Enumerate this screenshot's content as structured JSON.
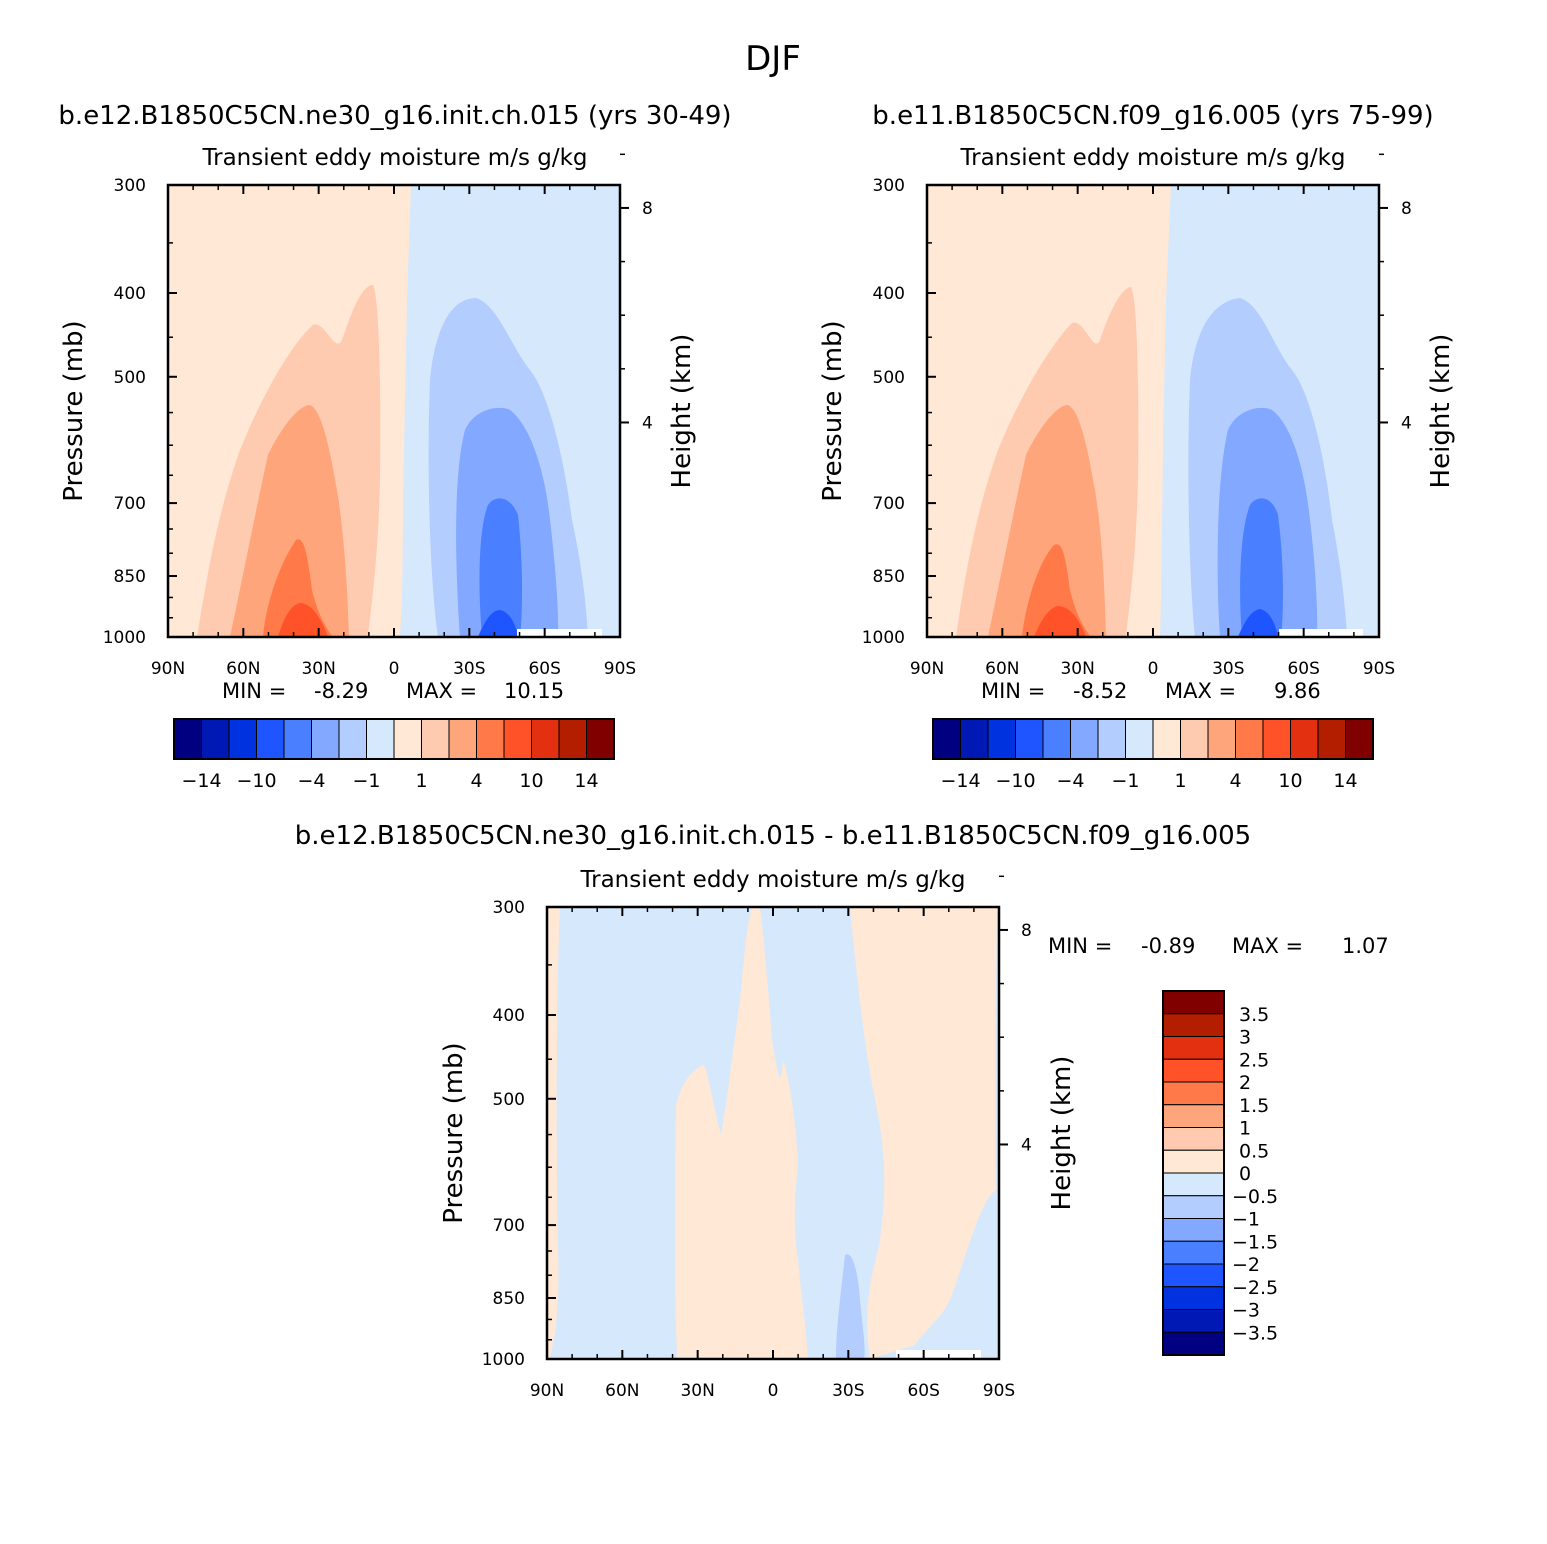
{
  "page_title": "DJF",
  "colors": {
    "scale": [
      "#000080",
      "#0018b4",
      "#0032e0",
      "#1e55ff",
      "#4a80ff",
      "#82a8ff",
      "#b4cdff",
      "#d6e8fc",
      "#ffe8d6",
      "#ffcbb0",
      "#ffa57c",
      "#ff7a48",
      "#ff5228",
      "#e23010",
      "#b41e00",
      "#800000"
    ],
    "white": "#ffffff"
  },
  "chart_data": [
    {
      "type": "heatmap",
      "plot_type": "filled contour (pressure-latitude)",
      "case_title": "b.e12.B1850C5CN.ne30_g16.init.ch.015 (yrs 30-49)",
      "variable_title": "Transient eddy moisture m/s g/kg",
      "x_ticks": [
        "90N",
        "60N",
        "30N",
        "0",
        "30S",
        "60S",
        "90S"
      ],
      "x_range": [
        90,
        -90
      ],
      "y_label": "Pressure (mb)",
      "y_ticks": [
        "300",
        "400",
        "500",
        "700",
        "850",
        "1000"
      ],
      "y_range_mb": [
        1000,
        300
      ],
      "y_scale": "log",
      "y2_label": "Height (km)",
      "y2_ticks": [
        "8",
        "4"
      ],
      "min_label": "MIN =",
      "min_value": "-8.29",
      "max_label": "MAX =",
      "max_value": "10.15",
      "colorbar_labels": [
        "-14",
        "-10",
        "-4",
        "-1",
        "1",
        "4",
        "10",
        "14"
      ],
      "colorbar_orientation": "horizontal",
      "min_max": [
        -8.29,
        10.15
      ]
    },
    {
      "type": "heatmap",
      "plot_type": "filled contour (pressure-latitude)",
      "case_title": "b.e11.B1850C5CN.f09_g16.005 (yrs 75-99)",
      "variable_title": "Transient eddy moisture m/s g/kg",
      "x_ticks": [
        "90N",
        "60N",
        "30N",
        "0",
        "30S",
        "60S",
        "90S"
      ],
      "x_range": [
        90,
        -90
      ],
      "y_label": "Pressure (mb)",
      "y_ticks": [
        "300",
        "400",
        "500",
        "700",
        "850",
        "1000"
      ],
      "y_range_mb": [
        1000,
        300
      ],
      "y_scale": "log",
      "y2_label": "Height (km)",
      "y2_ticks": [
        "8",
        "4"
      ],
      "min_label": "MIN =",
      "min_value": "-8.52",
      "max_label": "MAX =",
      "max_value": "9.86",
      "colorbar_labels": [
        "-14",
        "-10",
        "-4",
        "-1",
        "1",
        "4",
        "10",
        "14"
      ],
      "colorbar_orientation": "horizontal",
      "min_max": [
        -8.52,
        9.86
      ]
    },
    {
      "type": "heatmap",
      "plot_type": "filled contour (pressure-latitude), difference",
      "case_title": "b.e12.B1850C5CN.ne30_g16.init.ch.015 - b.e11.B1850C5CN.f09_g16.005",
      "variable_title": "Transient eddy moisture m/s g/kg",
      "x_ticks": [
        "90N",
        "60N",
        "30N",
        "0",
        "30S",
        "60S",
        "90S"
      ],
      "x_range": [
        90,
        -90
      ],
      "y_label": "Pressure (mb)",
      "y_ticks": [
        "300",
        "400",
        "500",
        "700",
        "850",
        "1000"
      ],
      "y_range_mb": [
        1000,
        300
      ],
      "y_scale": "log",
      "y2_label": "Height (km)",
      "y2_ticks": [
        "8",
        "4"
      ],
      "min_label": "MIN =",
      "min_value": "-0.89",
      "max_label": "MAX =",
      "max_value": "1.07",
      "colorbar_labels": [
        "3.5",
        "3",
        "2.5",
        "2",
        "1.5",
        "1",
        "0.5",
        "0",
        "-0.5",
        "-1",
        "-1.5",
        "-2",
        "-2.5",
        "-3",
        "-3.5"
      ],
      "colorbar_orientation": "vertical",
      "min_max": [
        -0.89,
        1.07
      ]
    }
  ]
}
